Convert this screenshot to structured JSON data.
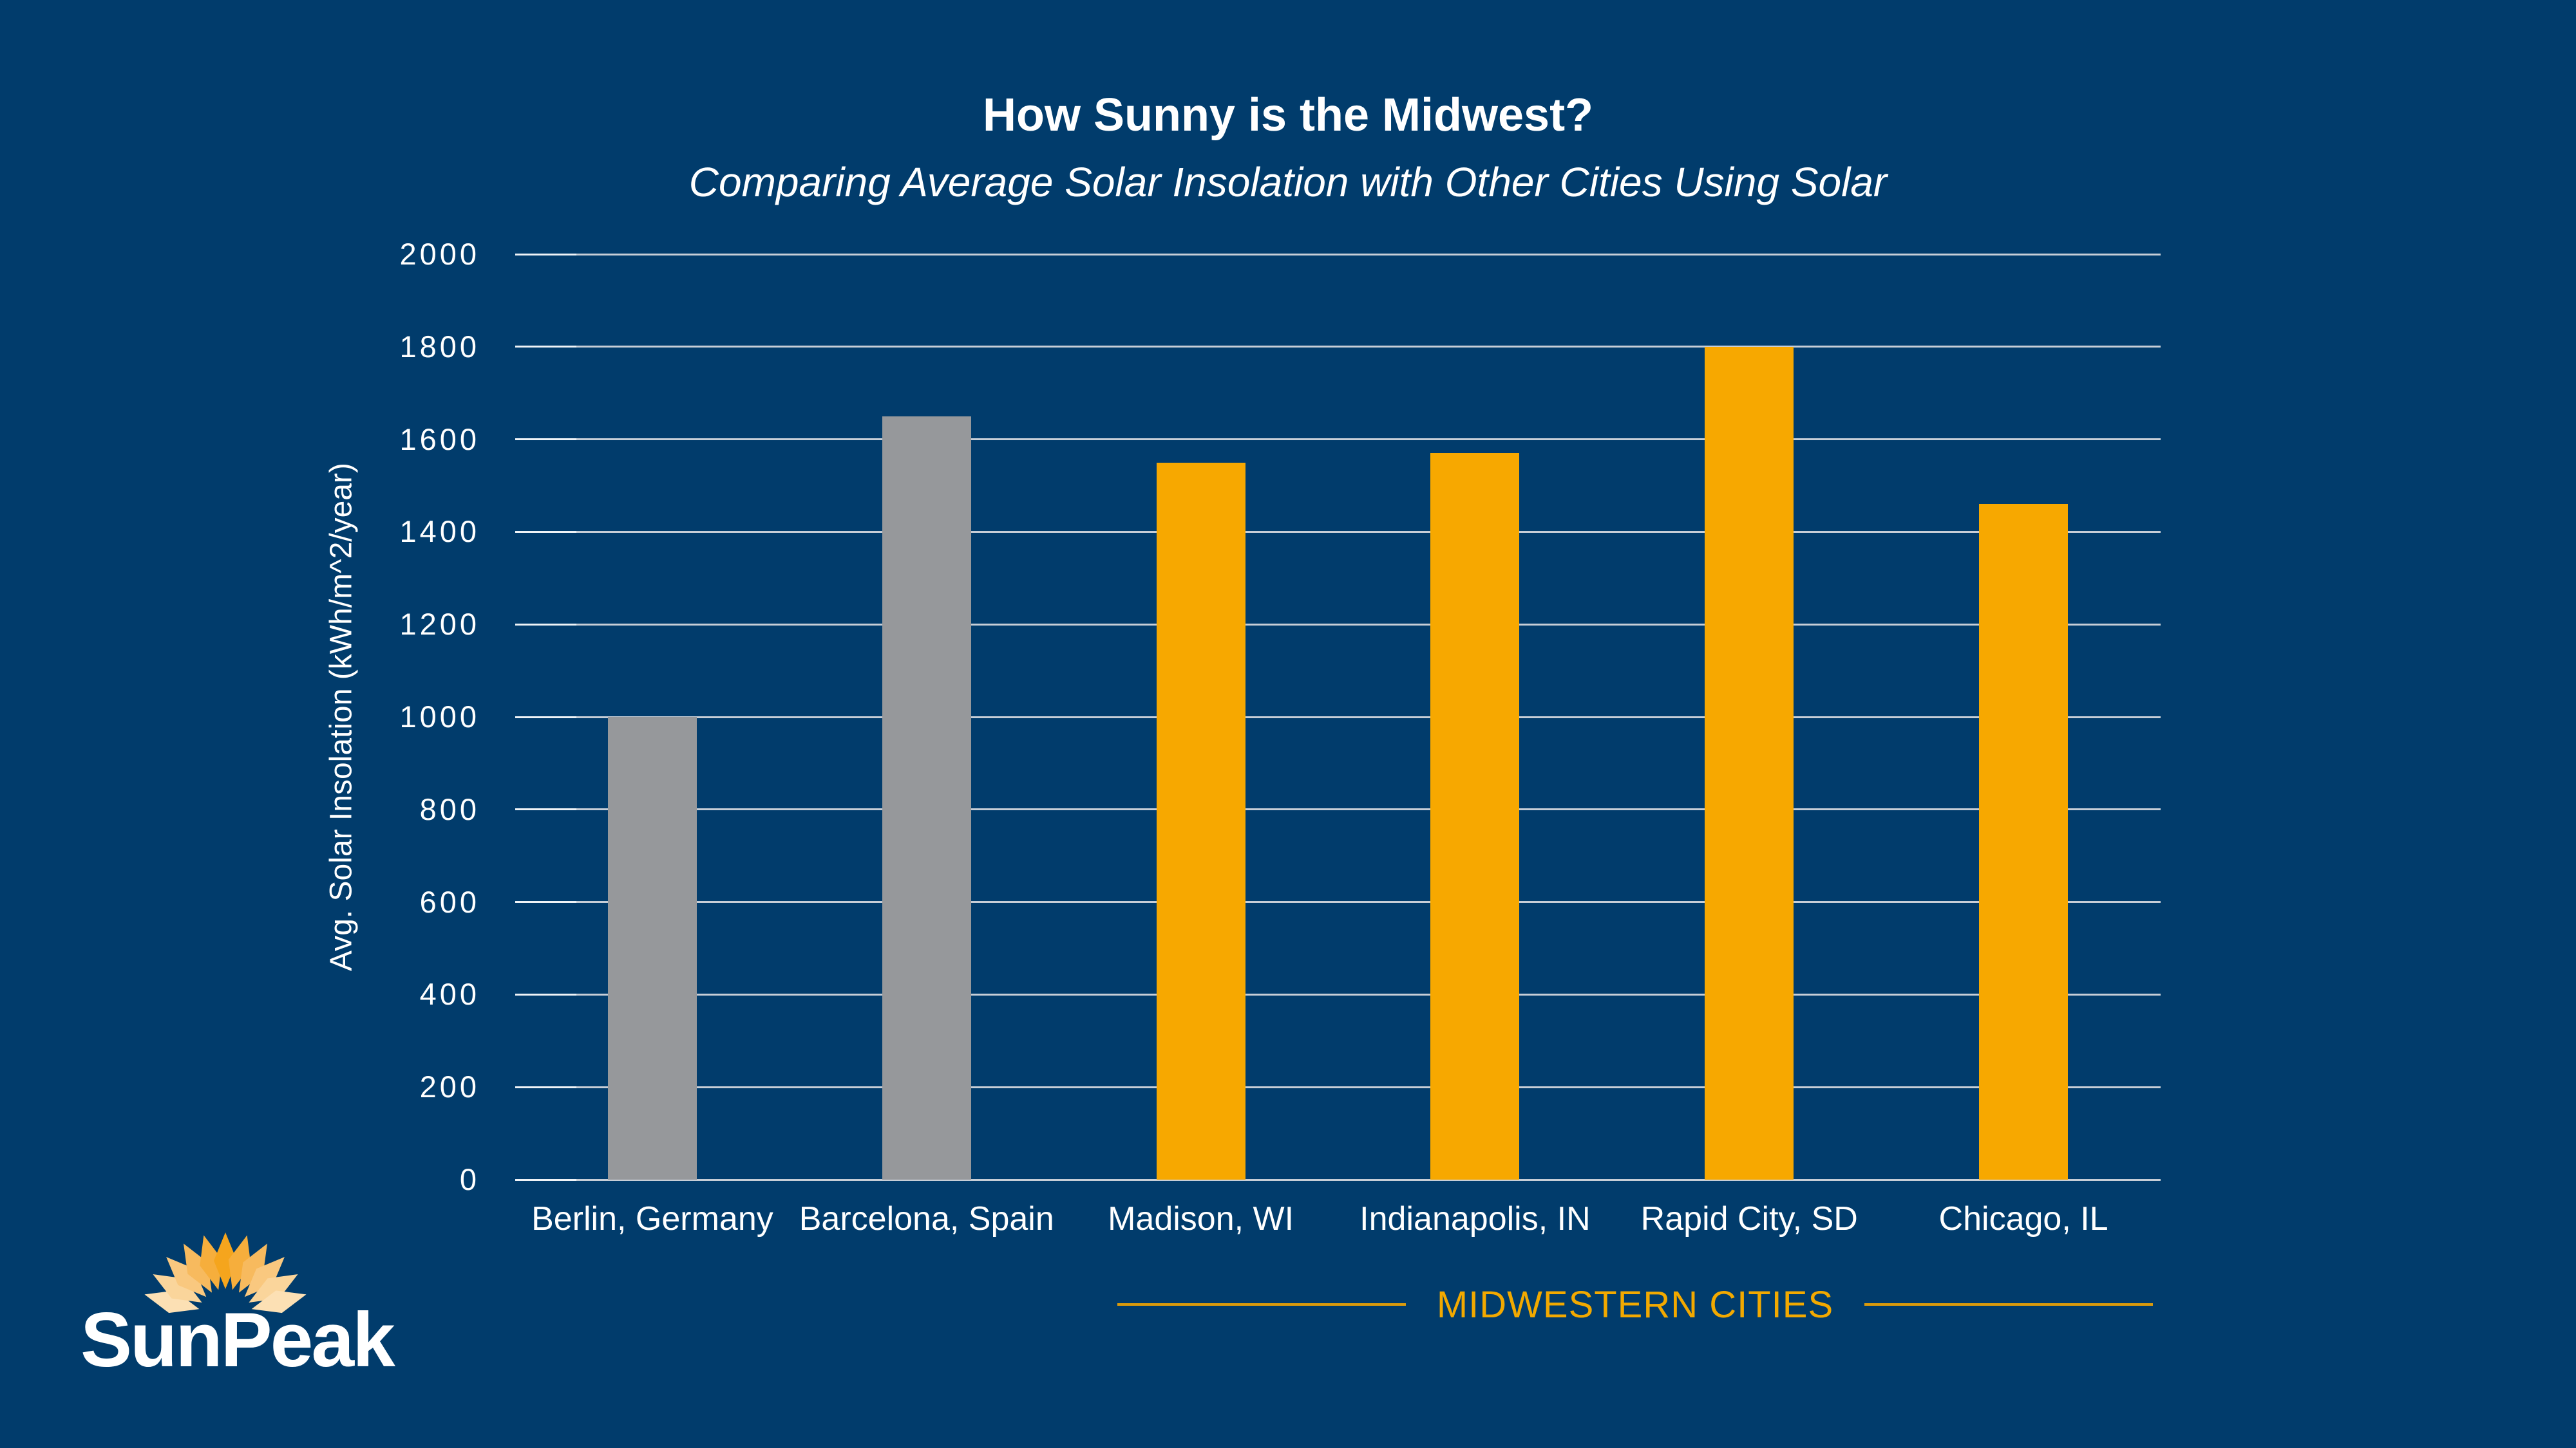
{
  "page": {
    "background_color": "#013C6C",
    "text_color": "#FFFFFF"
  },
  "header": {
    "title": "How Sunny is the Midwest?",
    "subtitle": "Comparing Average Solar Insolation with Other Cities Using Solar"
  },
  "chart_data": {
    "type": "bar",
    "title": "How Sunny is the Midwest?",
    "subtitle": "Comparing Average Solar Insolation with Other Cities Using Solar",
    "categories": [
      "Berlin, Germany",
      "Barcelona, Spain",
      "Madison, WI",
      "Indianapolis, IN",
      "Rapid City, SD",
      "Chicago, IL"
    ],
    "series": [
      {
        "name": "Avg. Solar Insolation",
        "values": [
          1000,
          1650,
          1550,
          1570,
          1800,
          1460
        ]
      }
    ],
    "bar_colors": [
      "#96989B",
      "#96989B",
      "#F7A800",
      "#F7A800",
      "#F7A800",
      "#F7A800"
    ],
    "ylabel": "Avg. Solar Insolation (kWh/m^2/year)",
    "xlabel": "MIDWESTERN CITIES",
    "ylim": [
      0,
      2000
    ],
    "ytick_step": 200,
    "ytick_labels": [
      "0",
      "200",
      "400",
      "600",
      "800",
      "1000",
      "1200",
      "1400",
      "1600",
      "1800",
      "2000"
    ],
    "grid": "horizontal gridlines on, light gray",
    "gridline_color": "#C7CED7",
    "legend": "none",
    "plot_background": "#013C6C"
  },
  "axis_group": {
    "label": "MIDWESTERN CITIES",
    "color": "#F2A900"
  },
  "logo": {
    "text": "SunPeak",
    "text_color": "#FFFFFF",
    "ray_colors": [
      "#F5A51D",
      "#F6AE3C",
      "#F7BA5E",
      "#F9C87F",
      "#FAD59B",
      "#FCE0B4"
    ]
  }
}
